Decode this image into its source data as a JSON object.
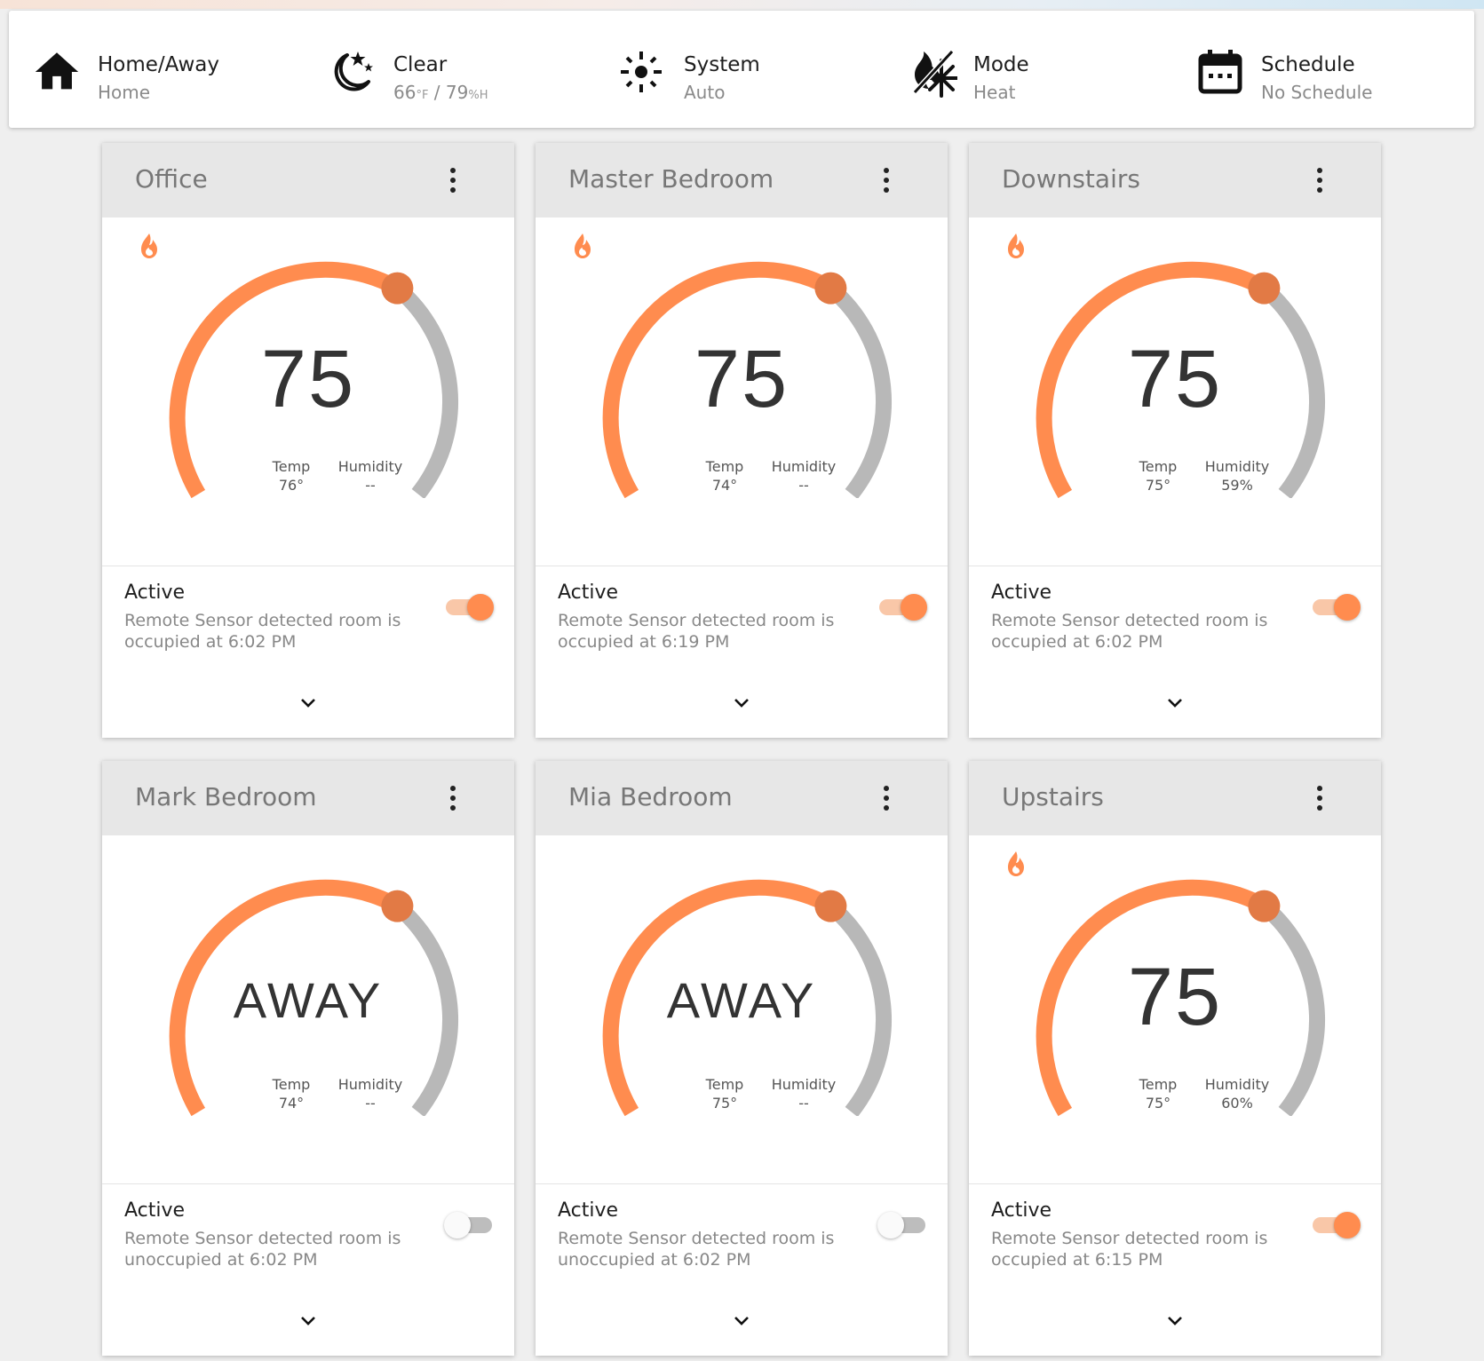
{
  "colors": {
    "accent": "#ff8c4f",
    "accent_dark": "#e27a45",
    "track_gray": "#b8b8b8",
    "card_header": "#e7e7e7"
  },
  "status_bar": {
    "items": [
      {
        "icon": "home-icon",
        "title": "Home/Away",
        "subtitle": "Home"
      },
      {
        "icon": "night-clear-icon",
        "title": "Clear",
        "temp": "66",
        "temp_unit": "°F",
        "separator": " / ",
        "humidity": "79",
        "humidity_unit": "%H"
      },
      {
        "icon": "system-auto-icon",
        "title": "System",
        "subtitle": "Auto"
      },
      {
        "icon": "heat-mode-icon",
        "title": "Mode",
        "subtitle": "Heat"
      },
      {
        "icon": "calendar-icon",
        "title": "Schedule",
        "subtitle": "No Schedule"
      }
    ]
  },
  "rooms": [
    {
      "name": "Office",
      "setpoint": "75",
      "temp_label": "Temp",
      "temp": "76°",
      "humidity_label": "Humidity",
      "humidity": "--",
      "heating": true,
      "active_label": "Active",
      "active": true,
      "description": "Remote Sensor detected room is occupied at 6:02 PM"
    },
    {
      "name": "Master Bedroom",
      "setpoint": "75",
      "temp_label": "Temp",
      "temp": "74°",
      "humidity_label": "Humidity",
      "humidity": "--",
      "heating": true,
      "active_label": "Active",
      "active": true,
      "description": "Remote Sensor detected room is occupied at 6:19 PM"
    },
    {
      "name": "Downstairs",
      "setpoint": "75",
      "temp_label": "Temp",
      "temp": "75°",
      "humidity_label": "Humidity",
      "humidity": "59%",
      "heating": true,
      "active_label": "Active",
      "active": true,
      "description": "Remote Sensor detected room is occupied at 6:02 PM"
    },
    {
      "name": "Mark Bedroom",
      "setpoint": "AWAY",
      "temp_label": "Temp",
      "temp": "74°",
      "humidity_label": "Humidity",
      "humidity": "--",
      "heating": false,
      "active_label": "Active",
      "active": false,
      "description": "Remote Sensor detected room is unoccupied at 6:02 PM"
    },
    {
      "name": "Mia Bedroom",
      "setpoint": "AWAY",
      "temp_label": "Temp",
      "temp": "75°",
      "humidity_label": "Humidity",
      "humidity": "--",
      "heating": false,
      "active_label": "Active",
      "active": false,
      "description": "Remote Sensor detected room is unoccupied at 6:02 PM"
    },
    {
      "name": "Upstairs",
      "setpoint": "75",
      "temp_label": "Temp",
      "temp": "75°",
      "humidity_label": "Humidity",
      "humidity": "60%",
      "heating": true,
      "active_label": "Active",
      "active": true,
      "description": "Remote Sensor detected room is occupied at 6:15 PM"
    }
  ]
}
